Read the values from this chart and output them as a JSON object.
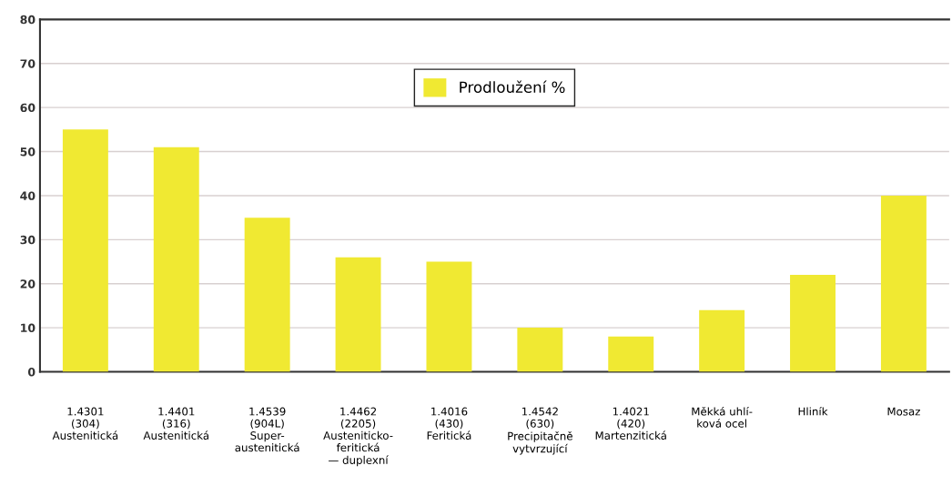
{
  "chart_data": {
    "type": "bar",
    "categories": [
      "1.4301\n(304)\nAustenitická",
      "1.4401\n(316)\nAustenitická",
      "1.4539\n(904L)\nSuper-\naustenitická",
      "1.4462\n(2205)\nAusteniticko-\nferitická\n— duplexní",
      "1.4016\n(430)\nFeritická",
      "1.4542\n(630)\nPrecipitačně\nvytvrzující",
      "1.4021\n(420)\nMartenzitická",
      "Měkká uhlí-\nková ocel",
      "Hliník",
      "Mosaz"
    ],
    "series": [
      {
        "name": "Prodloužení %",
        "color": "#f0e932",
        "values": [
          55,
          51,
          35,
          26,
          25,
          10,
          8,
          14,
          22,
          40
        ]
      }
    ],
    "ylim": [
      0,
      80
    ],
    "yticks": [
      0,
      10,
      20,
      30,
      40,
      50,
      60,
      70,
      80
    ],
    "grid": "y",
    "legend": "top"
  }
}
